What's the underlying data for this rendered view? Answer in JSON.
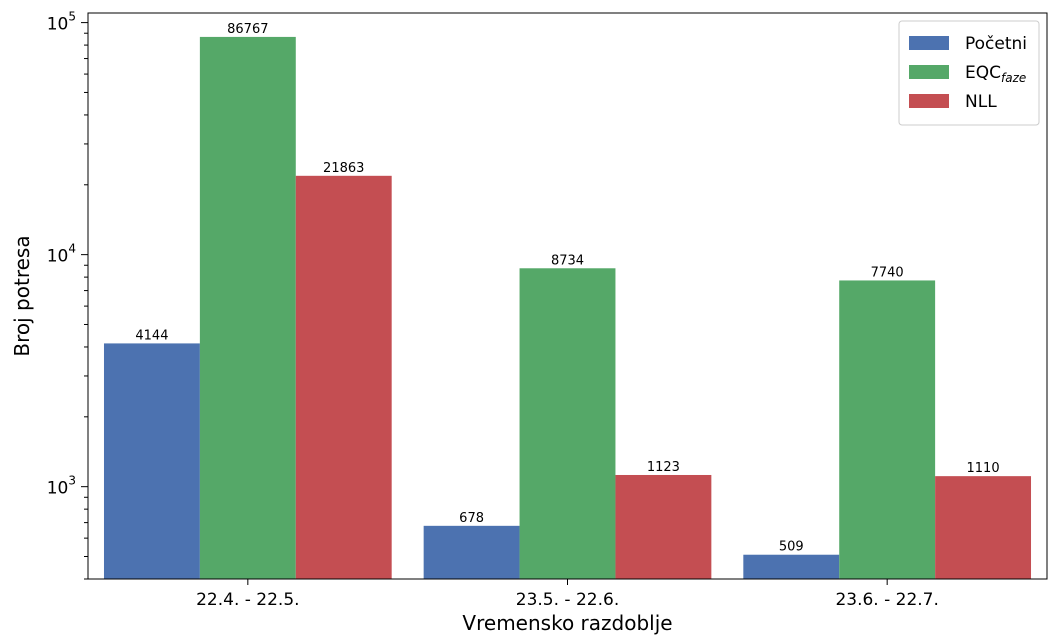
{
  "chart_data": {
    "type": "bar",
    "categories": [
      "22.4. - 22.5.",
      "23.5. - 22.6.",
      "23.6. - 22.7."
    ],
    "series": [
      {
        "name": "Početni",
        "sub": "",
        "color": "#4c72b0",
        "values": [
          4144,
          678,
          509
        ]
      },
      {
        "name": "EQC",
        "sub": "faze",
        "color": "#55a868",
        "values": [
          86767,
          8734,
          7740
        ]
      },
      {
        "name": "NLL",
        "sub": "",
        "color": "#c44e52",
        "values": [
          21863,
          1123,
          1110
        ]
      }
    ],
    "data_labels": [
      [
        "4144",
        "678",
        "509"
      ],
      [
        "86767",
        "8734",
        "7740"
      ],
      [
        "21863",
        "1123",
        "1110"
      ]
    ],
    "xlabel": "Vremensko razdoblje",
    "ylabel": "Broj potresa",
    "yscale": "log",
    "ylim": [
      400,
      110000
    ],
    "yticks": [
      {
        "value": 1000,
        "base": "10",
        "exp": "3"
      },
      {
        "value": 10000,
        "base": "10",
        "exp": "4"
      },
      {
        "value": 100000,
        "base": "10",
        "exp": "5"
      }
    ],
    "legend_position": "top-right",
    "grid": false
  }
}
